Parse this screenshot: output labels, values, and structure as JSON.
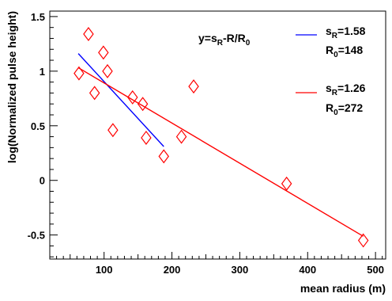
{
  "chart_data": {
    "type": "scatter",
    "title": "",
    "xlabel": "mean radius (m)",
    "ylabel": "log(Normalized pulse height)",
    "xlim": [
      20,
      515
    ],
    "ylim": [
      -0.72,
      1.55
    ],
    "x_ticks": [
      {
        "value": 100,
        "label": "100"
      },
      {
        "value": 200,
        "label": "200"
      },
      {
        "value": 300,
        "label": "300"
      },
      {
        "value": 400,
        "label": "400"
      },
      {
        "value": 500,
        "label": "500"
      }
    ],
    "y_ticks": [
      {
        "value": -0.5,
        "label": "-0.5"
      },
      {
        "value": 0,
        "label": "0"
      },
      {
        "value": 0.5,
        "label": "0.5"
      },
      {
        "value": 1,
        "label": "1"
      },
      {
        "value": 1.5,
        "label": "1.5"
      }
    ],
    "marker": "diamond",
    "marker_color": "#ff0000",
    "points": [
      {
        "x": 63,
        "y": 0.98
      },
      {
        "x": 77,
        "y": 1.34
      },
      {
        "x": 86,
        "y": 0.8
      },
      {
        "x": 99,
        "y": 1.17
      },
      {
        "x": 105,
        "y": 1.0
      },
      {
        "x": 113,
        "y": 0.46
      },
      {
        "x": 142,
        "y": 0.76
      },
      {
        "x": 157,
        "y": 0.7
      },
      {
        "x": 162,
        "y": 0.39
      },
      {
        "x": 188,
        "y": 0.22
      },
      {
        "x": 214,
        "y": 0.4
      },
      {
        "x": 232,
        "y": 0.86
      },
      {
        "x": 369,
        "y": -0.03
      },
      {
        "x": 482,
        "y": -0.55
      }
    ],
    "formula": {
      "prefix": "y=s",
      "sub1": "R",
      "middle": "-R/R",
      "sub2": "0"
    },
    "fits": [
      {
        "color": "#0000ff",
        "x_range": [
          62,
          188
        ],
        "sR": 1.58,
        "R0": 148,
        "label_s": "s",
        "label_s_sub": "R",
        "label_s_value": "=1.58",
        "label_r": "R",
        "label_r_sub": "0",
        "label_r_value": "=148"
      },
      {
        "color": "#ff0000",
        "x_range": [
          62,
          482
        ],
        "sR": 1.26,
        "R0": 272,
        "label_s": "s",
        "label_s_sub": "R",
        "label_s_value": "=1.26",
        "label_r": "R",
        "label_r_sub": "0",
        "label_r_value": "=272"
      }
    ]
  }
}
